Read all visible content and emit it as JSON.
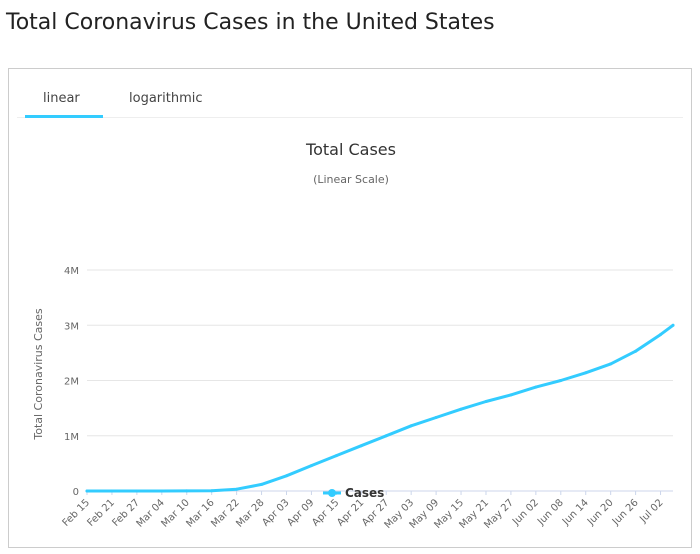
{
  "page": {
    "title": "Total Coronavirus Cases in the United States"
  },
  "tabs": [
    {
      "label": "linear",
      "active": true
    },
    {
      "label": "logarithmic",
      "active": false
    }
  ],
  "colors": {
    "series": "#33ccff",
    "tab_active": "#33ccff",
    "grid": "#e6e6e6"
  },
  "chart_data": {
    "type": "line",
    "title": "Total Cases",
    "subtitle": "(Linear Scale)",
    "ylabel": "Total Coronavirus Cases",
    "xlabel": "",
    "ylim": [
      0,
      4000000
    ],
    "y_ticks": [
      {
        "value": 0,
        "label": "0"
      },
      {
        "value": 1000000,
        "label": "1M"
      },
      {
        "value": 2000000,
        "label": "2M"
      },
      {
        "value": 3000000,
        "label": "3M"
      },
      {
        "value": 4000000,
        "label": "4M"
      }
    ],
    "x_start": "Feb 15",
    "x_end": "Jul 05",
    "x_ticks": [
      "Feb 15",
      "Feb 21",
      "Feb 27",
      "Mar 04",
      "Mar 10",
      "Mar 16",
      "Mar 22",
      "Mar 28",
      "Apr 03",
      "Apr 09",
      "Apr 15",
      "Apr 21",
      "Apr 27",
      "May 03",
      "May 09",
      "May 15",
      "May 21",
      "May 27",
      "Jun 02",
      "Jun 08",
      "Jun 14",
      "Jun 20",
      "Jun 26",
      "Jul 02"
    ],
    "legend": {
      "position": "bottom-center"
    },
    "series": [
      {
        "name": "Cases",
        "color": "#33ccff",
        "points": [
          [
            "Feb 15",
            15
          ],
          [
            "Feb 21",
            15
          ],
          [
            "Feb 27",
            60
          ],
          [
            "Mar 04",
            160
          ],
          [
            "Mar 10",
            1000
          ],
          [
            "Mar 16",
            4700
          ],
          [
            "Mar 22",
            33000
          ],
          [
            "Mar 28",
            120000
          ],
          [
            "Apr 03",
            276000
          ],
          [
            "Apr 09",
            460000
          ],
          [
            "Apr 15",
            640000
          ],
          [
            "Apr 21",
            820000
          ],
          [
            "Apr 27",
            1000000
          ],
          [
            "May 03",
            1180000
          ],
          [
            "May 09",
            1330000
          ],
          [
            "May 15",
            1480000
          ],
          [
            "May 21",
            1620000
          ],
          [
            "May 27",
            1740000
          ],
          [
            "Jun 02",
            1880000
          ],
          [
            "Jun 08",
            2000000
          ],
          [
            "Jun 14",
            2140000
          ],
          [
            "Jun 20",
            2300000
          ],
          [
            "Jun 26",
            2530000
          ],
          [
            "Jul 02",
            2830000
          ],
          [
            "Jul 05",
            3000000
          ]
        ]
      }
    ]
  }
}
